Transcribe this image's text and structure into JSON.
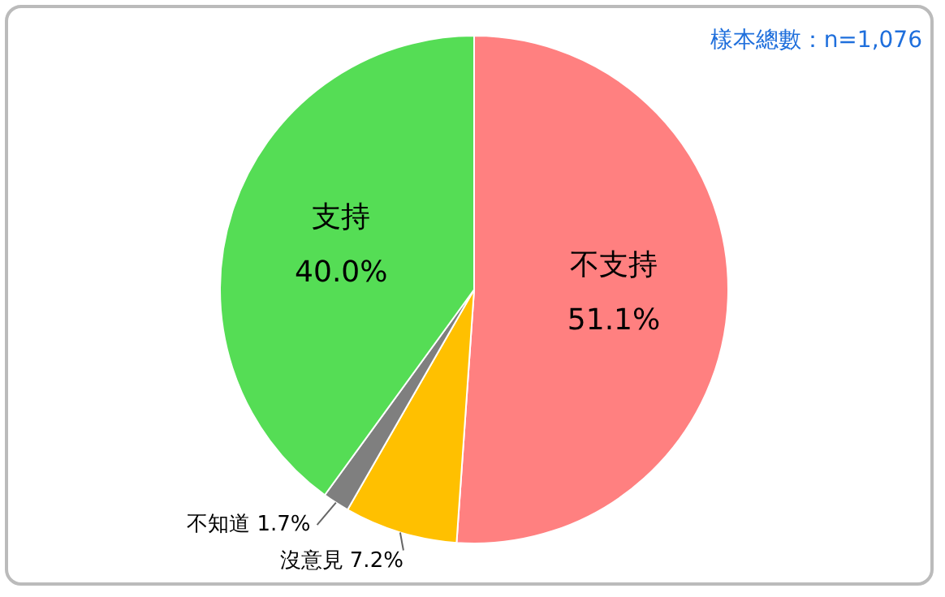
{
  "chart_data": {
    "type": "pie",
    "categories": [
      "不支持",
      "沒意見",
      "不知道",
      "支持"
    ],
    "values": [
      51.1,
      7.2,
      1.7,
      40.0
    ],
    "value_labels": [
      "51.1%",
      "7.2%",
      "1.7%",
      "40.0%"
    ],
    "colors": [
      "#ff8080",
      "#ffc000",
      "#7f7f7f",
      "#55dd55"
    ],
    "annotations": [
      "樣本總數：n=1,076"
    ],
    "legend": false
  }
}
